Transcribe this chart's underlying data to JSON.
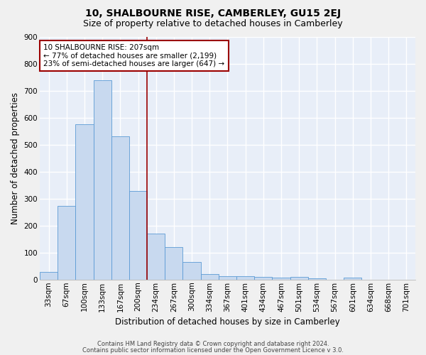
{
  "title": "10, SHALBOURNE RISE, CAMBERLEY, GU15 2EJ",
  "subtitle": "Size of property relative to detached houses in Camberley",
  "xlabel": "Distribution of detached houses by size in Camberley",
  "ylabel": "Number of detached properties",
  "footnote1": "Contains HM Land Registry data © Crown copyright and database right 2024.",
  "footnote2": "Contains public sector information licensed under the Open Government Licence v 3.0.",
  "bar_labels": [
    "33sqm",
    "67sqm",
    "100sqm",
    "133sqm",
    "167sqm",
    "200sqm",
    "234sqm",
    "267sqm",
    "300sqm",
    "334sqm",
    "367sqm",
    "401sqm",
    "434sqm",
    "467sqm",
    "501sqm",
    "534sqm",
    "567sqm",
    "601sqm",
    "634sqm",
    "668sqm",
    "701sqm"
  ],
  "bar_values": [
    27,
    272,
    575,
    737,
    530,
    328,
    170,
    120,
    65,
    20,
    13,
    13,
    10,
    8,
    10,
    5,
    0,
    7,
    0,
    0,
    0
  ],
  "bar_color": "#c8d9ef",
  "bar_edge_color": "#5b9bd5",
  "property_line_color": "#9b0000",
  "annotation_text": "10 SHALBOURNE RISE: 207sqm\n← 77% of detached houses are smaller (2,199)\n23% of semi-detached houses are larger (647) →",
  "annotation_box_color": "#ffffff",
  "annotation_box_edge_color": "#9b0000",
  "ylim": [
    0,
    900
  ],
  "yticks": [
    0,
    100,
    200,
    300,
    400,
    500,
    600,
    700,
    800,
    900
  ],
  "bg_color": "#e8eef8",
  "grid_color": "#ffffff",
  "fig_color": "#f0f0f0",
  "title_fontsize": 10,
  "subtitle_fontsize": 9,
  "axis_label_fontsize": 8.5,
  "tick_fontsize": 7.5,
  "annotation_fontsize": 7.5,
  "footnote_fontsize": 6
}
